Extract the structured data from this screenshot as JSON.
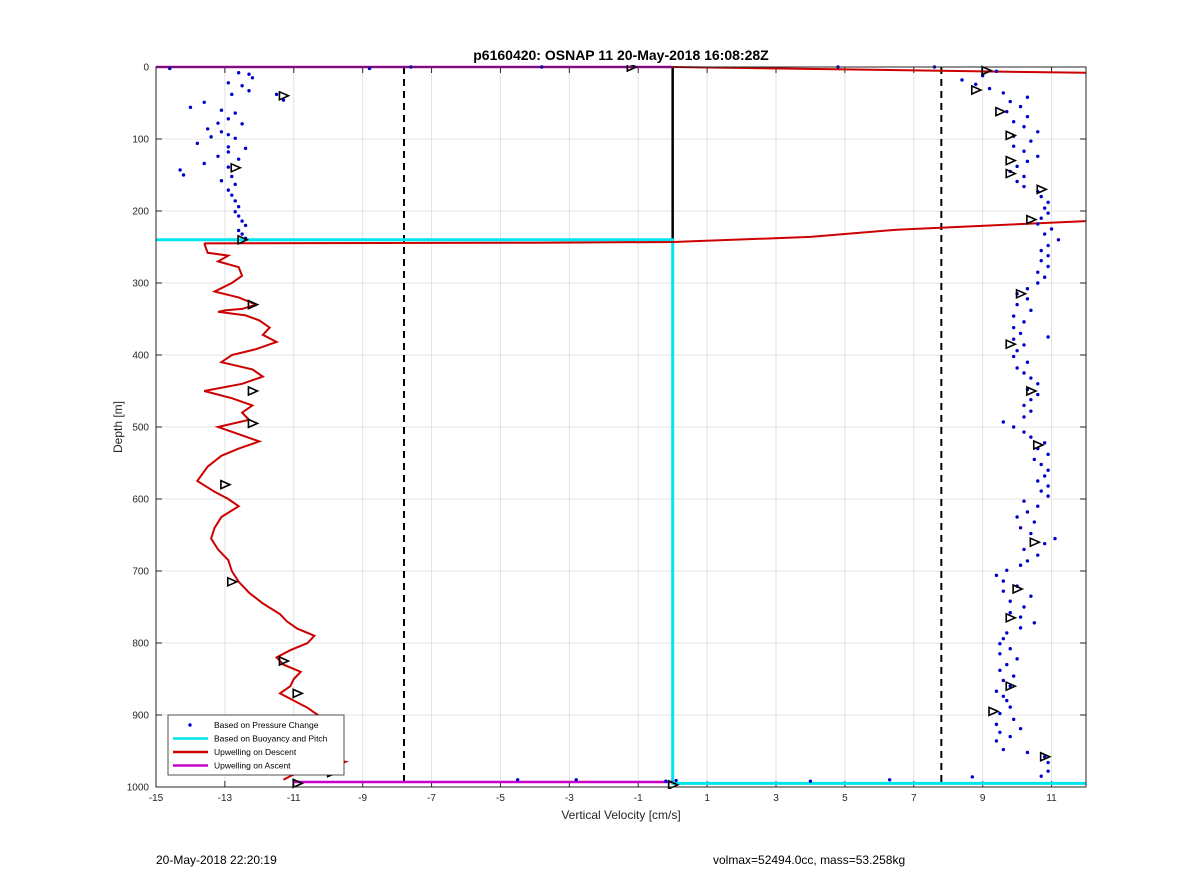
{
  "chart_data": {
    "type": "line",
    "title": "p6160420: OSNAP 11 20-May-2018 16:08:28Z",
    "xlabel": "Vertical Velocity [cm/s]",
    "ylabel": "Depth [m]",
    "xlim": [
      -15,
      12
    ],
    "ylim": [
      0,
      1000
    ],
    "y_reversed": true,
    "grid": true,
    "legend_position": "bottom-left",
    "x_ticks": [
      "-15",
      "-13",
      "-11",
      "-9",
      "-7",
      "-5",
      "-3",
      "-1",
      "1",
      "3",
      "5",
      "7",
      "9",
      "11"
    ],
    "y_ticks": [
      "0",
      "100",
      "200",
      "300",
      "400",
      "500",
      "600",
      "700",
      "800",
      "900",
      "1000"
    ],
    "vlines": [
      -7.8,
      7.8
    ],
    "series": [
      {
        "name": "Based on Pressure Change",
        "color": "#0000cc",
        "style": "dots",
        "descent_points": [
          [
            -12.6,
            8
          ],
          [
            -12.3,
            10
          ],
          [
            -12.2,
            15
          ],
          [
            -12.9,
            22
          ],
          [
            -12.5,
            26
          ],
          [
            -12.3,
            33
          ],
          [
            -12.8,
            38
          ],
          [
            -11.5,
            38
          ],
          [
            -11.3,
            46
          ],
          [
            -13.6,
            49
          ],
          [
            -14.0,
            56
          ],
          [
            -13.1,
            60
          ],
          [
            -12.7,
            64
          ],
          [
            -12.9,
            72
          ],
          [
            -13.2,
            78
          ],
          [
            -12.5,
            79
          ],
          [
            -13.5,
            86
          ],
          [
            -13.1,
            90
          ],
          [
            -12.9,
            94
          ],
          [
            -13.4,
            97
          ],
          [
            -12.7,
            99
          ],
          [
            -13.8,
            106
          ],
          [
            -12.9,
            111
          ],
          [
            -12.4,
            113
          ],
          [
            -12.9,
            118
          ],
          [
            -13.2,
            124
          ],
          [
            -12.6,
            128
          ],
          [
            -13.6,
            134
          ],
          [
            -12.9,
            139
          ],
          [
            -14.3,
            143
          ],
          [
            -14.2,
            150
          ],
          [
            -12.8,
            152
          ],
          [
            -13.1,
            158
          ],
          [
            -12.7,
            163
          ],
          [
            -12.9,
            171
          ],
          [
            -12.8,
            178
          ],
          [
            -12.7,
            186
          ],
          [
            -12.6,
            194
          ],
          [
            -12.7,
            201
          ],
          [
            -12.6,
            207
          ],
          [
            -12.5,
            214
          ],
          [
            -12.4,
            220
          ],
          [
            -12.6,
            227
          ],
          [
            -12.5,
            232
          ],
          [
            -12.4,
            238
          ],
          [
            -14.6,
            2
          ],
          [
            -8.8,
            2
          ],
          [
            -7.6,
            0
          ],
          [
            -3.8,
            0
          ],
          [
            4.8,
            0
          ],
          [
            7.6,
            0
          ]
        ],
        "ascent_points": [
          [
            10.7,
            985
          ],
          [
            10.9,
            978
          ],
          [
            10.9,
            966
          ],
          [
            10.8,
            958
          ],
          [
            10.3,
            952
          ],
          [
            9.6,
            948
          ],
          [
            9.4,
            936
          ],
          [
            9.8,
            930
          ],
          [
            9.5,
            924
          ],
          [
            10.1,
            919
          ],
          [
            9.4,
            913
          ],
          [
            9.9,
            906
          ],
          [
            9.5,
            898
          ],
          [
            9.8,
            889
          ],
          [
            9.7,
            880
          ],
          [
            9.6,
            874
          ],
          [
            9.4,
            867
          ],
          [
            9.8,
            860
          ],
          [
            9.6,
            852
          ],
          [
            9.9,
            846
          ],
          [
            9.5,
            838
          ],
          [
            9.7,
            830
          ],
          [
            10.0,
            822
          ],
          [
            9.5,
            815
          ],
          [
            9.8,
            808
          ],
          [
            9.5,
            801
          ],
          [
            9.6,
            794
          ],
          [
            9.7,
            786
          ],
          [
            10.1,
            779
          ],
          [
            10.5,
            772
          ],
          [
            10.1,
            764
          ],
          [
            9.8,
            758
          ],
          [
            10.2,
            750
          ],
          [
            9.8,
            742
          ],
          [
            10.4,
            735
          ],
          [
            9.6,
            728
          ],
          [
            10.0,
            721
          ],
          [
            9.6,
            714
          ],
          [
            9.4,
            706
          ],
          [
            9.7,
            699
          ],
          [
            10.1,
            692
          ],
          [
            10.3,
            686
          ],
          [
            10.6,
            678
          ],
          [
            10.2,
            670
          ],
          [
            10.8,
            662
          ],
          [
            11.1,
            655
          ],
          [
            10.4,
            648
          ],
          [
            10.1,
            640
          ],
          [
            10.5,
            632
          ],
          [
            10.0,
            625
          ],
          [
            10.3,
            618
          ],
          [
            10.6,
            610
          ],
          [
            10.2,
            603
          ],
          [
            10.9,
            596
          ],
          [
            10.7,
            589
          ],
          [
            10.9,
            582
          ],
          [
            10.6,
            575
          ],
          [
            10.8,
            568
          ],
          [
            10.9,
            560
          ],
          [
            10.7,
            552
          ],
          [
            10.5,
            545
          ],
          [
            10.9,
            538
          ],
          [
            10.6,
            530
          ],
          [
            10.8,
            522
          ],
          [
            10.4,
            514
          ],
          [
            10.2,
            507
          ],
          [
            9.9,
            500
          ],
          [
            9.6,
            493
          ],
          [
            10.2,
            486
          ],
          [
            10.4,
            478
          ],
          [
            10.2,
            470
          ],
          [
            10.4,
            462
          ],
          [
            10.6,
            455
          ],
          [
            10.3,
            448
          ],
          [
            10.6,
            440
          ],
          [
            10.4,
            432
          ],
          [
            10.2,
            425
          ],
          [
            10.0,
            418
          ],
          [
            10.3,
            410
          ],
          [
            9.9,
            402
          ],
          [
            10.0,
            394
          ],
          [
            10.2,
            386
          ],
          [
            9.9,
            378
          ],
          [
            10.9,
            375
          ],
          [
            10.1,
            370
          ],
          [
            9.9,
            362
          ],
          [
            10.2,
            354
          ],
          [
            9.9,
            346
          ],
          [
            10.4,
            338
          ],
          [
            10.0,
            330
          ],
          [
            10.3,
            322
          ],
          [
            10.0,
            315
          ],
          [
            10.3,
            308
          ],
          [
            10.6,
            300
          ],
          [
            10.8,
            292
          ],
          [
            10.6,
            285
          ],
          [
            10.9,
            277
          ],
          [
            10.7,
            269
          ],
          [
            10.9,
            262
          ],
          [
            10.7,
            255
          ],
          [
            10.9,
            248
          ],
          [
            11.2,
            240
          ],
          [
            10.8,
            232
          ],
          [
            11.0,
            225
          ],
          [
            10.6,
            218
          ],
          [
            10.7,
            210
          ],
          [
            10.9,
            203
          ],
          [
            10.8,
            196
          ],
          [
            10.9,
            188
          ],
          [
            10.7,
            180
          ],
          [
            10.6,
            173
          ],
          [
            10.2,
            166
          ],
          [
            10.0,
            159
          ],
          [
            10.2,
            152
          ],
          [
            9.8,
            145
          ],
          [
            10.0,
            138
          ],
          [
            10.3,
            131
          ],
          [
            10.6,
            124
          ],
          [
            10.2,
            117
          ],
          [
            9.9,
            110
          ],
          [
            10.4,
            103
          ],
          [
            9.9,
            96
          ],
          [
            10.6,
            90
          ],
          [
            10.2,
            83
          ],
          [
            9.9,
            76
          ],
          [
            10.3,
            69
          ],
          [
            9.7,
            62
          ],
          [
            10.1,
            55
          ],
          [
            9.8,
            48
          ],
          [
            10.3,
            42
          ],
          [
            9.6,
            36
          ],
          [
            9.2,
            30
          ],
          [
            8.8,
            24
          ],
          [
            8.4,
            18
          ],
          [
            9.0,
            12
          ],
          [
            9.4,
            6
          ],
          [
            -4.5,
            990
          ],
          [
            -2.8,
            990
          ],
          [
            -0.2,
            992
          ],
          [
            0.1,
            991
          ],
          [
            4.0,
            992
          ],
          [
            6.3,
            990
          ],
          [
            8.7,
            986
          ]
        ]
      },
      {
        "name": "Based on Buoyancy and Pitch",
        "color": "#00e5ee",
        "style": "line",
        "x": [
          -15,
          -12.0,
          -10.7,
          0.0,
          0.0,
          0.0,
          12.0
        ],
        "y": [
          240,
          240,
          240,
          240,
          990,
          995,
          995
        ]
      },
      {
        "name": "Upwelling on Descent",
        "color": "#cc0000",
        "style": "line",
        "x": [
          -13.6,
          -13.5,
          -12.9,
          -13.2,
          -12.6,
          -12.5,
          -12.8,
          -13.3,
          -12.6,
          -12.1,
          -12.5,
          -13.0,
          -13.2,
          -12.4,
          -12.0,
          -11.7,
          -11.9,
          -11.5,
          -12.1,
          -12.8,
          -13.1,
          -12.2,
          -11.9,
          -12.5,
          -13.6,
          -12.8,
          -12.2,
          -12.5,
          -12.3,
          -13.2,
          -12.6,
          -12.0,
          -12.6,
          -13.1,
          -13.5,
          -13.8,
          -13.3,
          -12.9,
          -12.6,
          -13.1,
          -13.3,
          -13.4,
          -13.2,
          -12.9,
          -12.8,
          -12.6,
          -12.3,
          -11.9,
          -11.4,
          -11.2,
          -10.9,
          -10.4,
          -10.6,
          -11.1,
          -11.5,
          -11.3,
          -10.8,
          -11.0,
          -11.1,
          -11.4,
          -11.0,
          -10.6,
          -10.3,
          -10.1,
          -10.4,
          -10.6,
          -10.0,
          -9.8,
          -10.2,
          -10.0,
          -9.5,
          -9.8,
          -10.5,
          -10.9,
          -11.3
        ],
        "y": [
          245,
          258,
          262,
          270,
          278,
          290,
          300,
          312,
          320,
          330,
          336,
          338,
          340,
          345,
          352,
          362,
          372,
          382,
          392,
          400,
          410,
          420,
          430,
          440,
          450,
          460,
          470,
          480,
          490,
          500,
          510,
          520,
          530,
          540,
          555,
          575,
          590,
          600,
          610,
          625,
          640,
          655,
          670,
          685,
          700,
          715,
          730,
          745,
          760,
          770,
          780,
          790,
          800,
          810,
          820,
          830,
          840,
          850,
          860,
          870,
          880,
          890,
          900,
          910,
          920,
          930,
          940,
          950,
          955,
          960,
          965,
          970,
          975,
          980,
          990
        ],
        "surface_x": [
          -15,
          0.0,
          12.0
        ],
        "surface_y": [
          0,
          0,
          8
        ],
        "transition_x": [
          -13.6,
          -4.0,
          0.0,
          4.0,
          6.5,
          12.0
        ],
        "transition_y": [
          245,
          244,
          243,
          236,
          226,
          214
        ]
      },
      {
        "name": "Upwelling on Ascent",
        "color": "#cc00cc",
        "style": "line",
        "x": [
          -15,
          0.0
        ],
        "y": [
          0,
          0
        ],
        "bottom_x": [
          -11.0,
          0.0
        ],
        "bottom_y": [
          993,
          993
        ]
      }
    ],
    "markers": {
      "shape": "triangle",
      "color": "#000000",
      "points": [
        [
          -1.2,
          0
        ],
        [
          -11.3,
          40
        ],
        [
          -12.7,
          140
        ],
        [
          -12.5,
          240
        ],
        [
          -12.2,
          330
        ],
        [
          -12.2,
          450
        ],
        [
          -12.2,
          495
        ],
        [
          -13.0,
          580
        ],
        [
          -12.8,
          715
        ],
        [
          -11.3,
          825
        ],
        [
          -10.9,
          870
        ],
        [
          -10.0,
          945
        ],
        [
          -9.9,
          980
        ],
        [
          -10.9,
          995
        ],
        [
          0.0,
          997
        ],
        [
          9.1,
          5
        ],
        [
          8.8,
          32
        ],
        [
          9.5,
          62
        ],
        [
          9.8,
          95
        ],
        [
          9.8,
          130
        ],
        [
          9.8,
          148
        ],
        [
          10.7,
          170
        ],
        [
          10.4,
          212
        ],
        [
          10.1,
          315
        ],
        [
          9.8,
          385
        ],
        [
          10.4,
          450
        ],
        [
          10.6,
          525
        ],
        [
          10.5,
          660
        ],
        [
          10.0,
          725
        ],
        [
          9.8,
          765
        ],
        [
          9.8,
          860
        ],
        [
          9.3,
          895
        ],
        [
          10.8,
          958
        ]
      ]
    },
    "legend": [
      {
        "label": "Based on Pressure Change",
        "color": "#0000cc",
        "kind": "dot"
      },
      {
        "label": "Based on Buoyancy and Pitch",
        "color": "#00e5ee",
        "kind": "line"
      },
      {
        "label": "Upwelling on Descent",
        "color": "#cc0000",
        "kind": "line"
      },
      {
        "label": "Upwelling on Ascent",
        "color": "#cc00cc",
        "kind": "line"
      }
    ]
  },
  "footer": {
    "left": "20-May-2018 22:20:19",
    "right": "volmax=52494.0cc, mass=53.258kg"
  }
}
